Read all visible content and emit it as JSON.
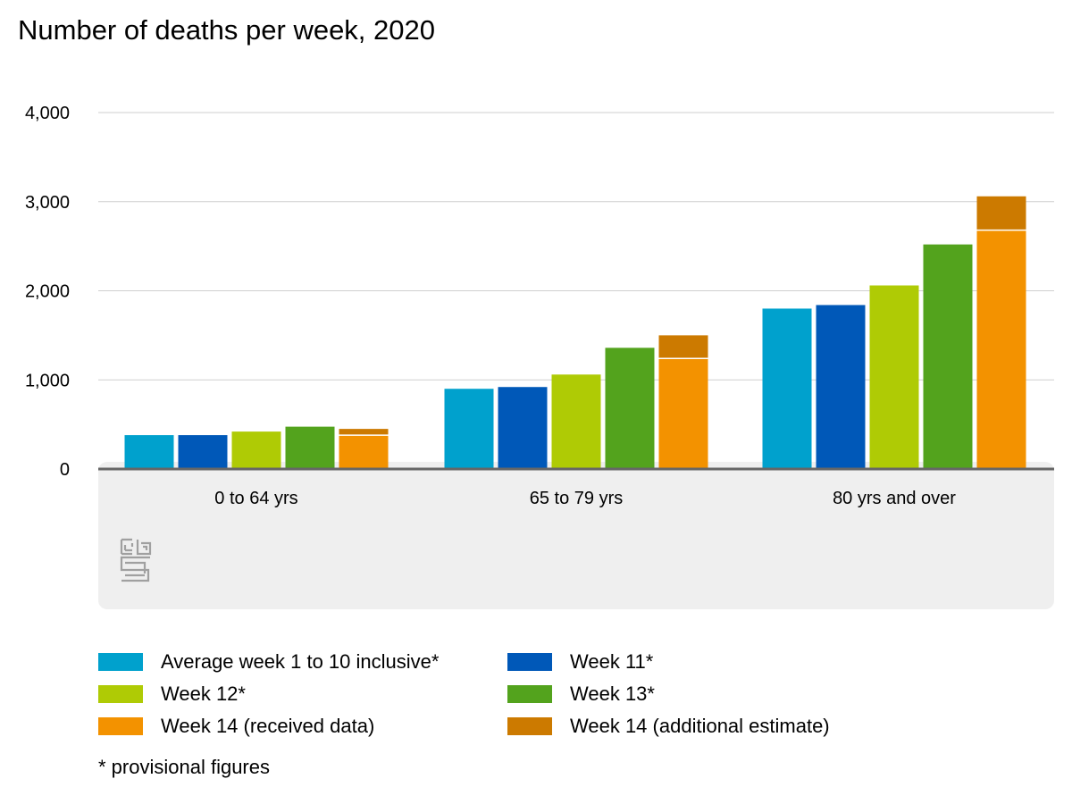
{
  "title": "Number of deaths per week, 2020",
  "footnote": "* provisional figures",
  "logo": {
    "icon": "cbs-logo-icon",
    "text": "cbs"
  },
  "colors": {
    "avg": "#00a1cd",
    "week11": "#0058b8",
    "week12": "#afcb05",
    "week13": "#53a31d",
    "week14_received": "#f39200",
    "week14_estimate": "#cc7a00",
    "grid": "#cfcfcf",
    "baseline": "#666666",
    "panel": "#efefef"
  },
  "chart_data": {
    "type": "bar",
    "title": "Number of deaths per week, 2020",
    "xlabel": "",
    "ylabel": "",
    "ylim": [
      0,
      4000
    ],
    "yticks": [
      0,
      1000,
      2000,
      3000,
      4000
    ],
    "ytick_labels": [
      "0",
      "1,000",
      "2,000",
      "3,000",
      "4,000"
    ],
    "grid": true,
    "legend_position": "bottom",
    "categories": [
      "0 to 64 yrs",
      "65 to 79 yrs",
      "80 yrs and over"
    ],
    "series": [
      {
        "name": "Average week 1 to 10 inclusive*",
        "color_key": "avg",
        "values": [
          380,
          900,
          1800
        ]
      },
      {
        "name": "Week 11*",
        "color_key": "week11",
        "values": [
          380,
          920,
          1840
        ]
      },
      {
        "name": "Week 12*",
        "color_key": "week12",
        "values": [
          420,
          1060,
          2060
        ]
      },
      {
        "name": "Week 13*",
        "color_key": "week13",
        "values": [
          475,
          1360,
          2520
        ]
      },
      {
        "name": "Week 14 (received data)",
        "color_key": "week14_received",
        "values": [
          380,
          1240,
          2680
        ],
        "stack": "week14"
      },
      {
        "name": "Week 14 (additional estimate)",
        "color_key": "week14_estimate",
        "values": [
          70,
          260,
          380
        ],
        "stack": "week14"
      }
    ]
  }
}
